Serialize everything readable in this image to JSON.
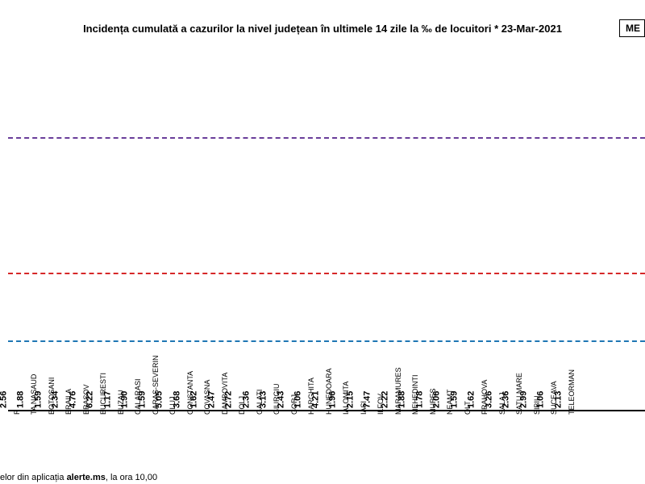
{
  "chart": {
    "type": "bar",
    "title": "Incidența cumulată a cazurilor la nivel județean în ultimele 14 zile la ‰ de locuitori *  23-Mar-2021",
    "legend_fragment": "ME",
    "ymax": 8.0,
    "thresholds": [
      {
        "value": 1.5,
        "color": "#1f77b4"
      },
      {
        "value": 3.0,
        "color": "#d62728"
      },
      {
        "value": 6.0,
        "color": "#6a3d9a"
      }
    ],
    "bar_colors": {
      "green": "#00c853",
      "yellow": "#ffea00",
      "red": "#e60000"
    },
    "title_fontsize": 13,
    "value_fontsize": 11,
    "xaxis_fontsize": 9,
    "background": "#ffffff",
    "footer_html": "elor din aplicația <b>alerte.ms</b>, la ora 10,00",
    "data": [
      {
        "cat": "R",
        "val": 2.56,
        "color": "yellow"
      },
      {
        "cat": "TA NASAUD",
        "val": 1.88,
        "color": "yellow"
      },
      {
        "cat": "BOTOSANI",
        "val": 1.59,
        "color": "yellow"
      },
      {
        "cat": "BRAILA",
        "val": 2.34,
        "color": "yellow"
      },
      {
        "cat": "BRASOV",
        "val": 4.76,
        "color": "red"
      },
      {
        "cat": "BUCURESTI",
        "val": 6.22,
        "color": "red"
      },
      {
        "cat": "BUZAU",
        "val": 1.17,
        "color": "green"
      },
      {
        "cat": "CALARASI",
        "val": 1.9,
        "color": "yellow"
      },
      {
        "cat": "CARAS-SEVERIN",
        "val": 1.59,
        "color": "yellow"
      },
      {
        "cat": "CLUJ",
        "val": 5.05,
        "color": "red"
      },
      {
        "cat": "CONSTANTA",
        "val": 3.68,
        "color": "red"
      },
      {
        "cat": "COVASNA",
        "val": 1.62,
        "color": "yellow"
      },
      {
        "cat": "DAMBOVITA",
        "val": 2.47,
        "color": "yellow"
      },
      {
        "cat": "DOLJ",
        "val": 2.72,
        "color": "yellow"
      },
      {
        "cat": "GALATI",
        "val": 2.36,
        "color": "yellow"
      },
      {
        "cat": "GIURGIU",
        "val": 3.13,
        "color": "red"
      },
      {
        "cat": "GORJ",
        "val": 2.43,
        "color": "yellow"
      },
      {
        "cat": "HARGHITA",
        "val": 1.06,
        "color": "green"
      },
      {
        "cat": "HUNEDOARA",
        "val": 4.21,
        "color": "red"
      },
      {
        "cat": "IALOMITA",
        "val": 1.96,
        "color": "yellow"
      },
      {
        "cat": "IASI",
        "val": 2.15,
        "color": "yellow"
      },
      {
        "cat": "ILFOV",
        "val": 7.47,
        "color": "red"
      },
      {
        "cat": "MARAMURES",
        "val": 2.22,
        "color": "yellow"
      },
      {
        "cat": "MEHEDINTI",
        "val": 1.88,
        "color": "yellow"
      },
      {
        "cat": "MURES",
        "val": 1.78,
        "color": "yellow"
      },
      {
        "cat": "NEAMT",
        "val": 2.06,
        "color": "yellow"
      },
      {
        "cat": "OLT",
        "val": 1.59,
        "color": "yellow"
      },
      {
        "cat": "PRAHOVA",
        "val": 1.62,
        "color": "yellow"
      },
      {
        "cat": "SALAJ",
        "val": 3.26,
        "color": "red"
      },
      {
        "cat": "SATU MARE",
        "val": 2.36,
        "color": "yellow"
      },
      {
        "cat": "SIBIU",
        "val": 2.99,
        "color": "yellow"
      },
      {
        "cat": "SUCEAVA",
        "val": 1.06,
        "color": "green"
      },
      {
        "cat": "TELEORMAN",
        "val": 2.13,
        "color": "yellow"
      }
    ]
  }
}
